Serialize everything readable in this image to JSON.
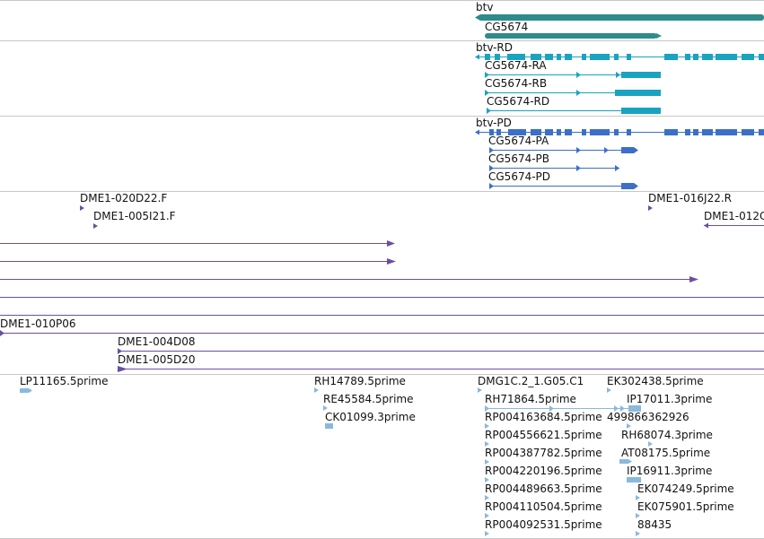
{
  "colors": {
    "gene": "#2e8b8b",
    "transcript": "#1aa3c0",
    "protein": "#3c6fc8",
    "clone": "#6a4fa3",
    "est": "#89b9de",
    "separator": "#c8c8c8"
  },
  "tracks": [
    {
      "id": "genes",
      "features": [
        {
          "label": "btv"
        },
        {
          "label": "CG5674"
        }
      ]
    },
    {
      "id": "transcripts",
      "features": [
        {
          "label": "btv-RD"
        },
        {
          "label": "CG5674-RA"
        },
        {
          "label": "CG5674-RB"
        },
        {
          "label": "CG5674-RD"
        }
      ]
    },
    {
      "id": "proteins",
      "features": [
        {
          "label": "btv-PD"
        },
        {
          "label": "CG5674-PA"
        },
        {
          "label": "CG5674-PB"
        },
        {
          "label": "CG5674-PD"
        }
      ]
    },
    {
      "id": "clones",
      "features": [
        {
          "label": "DME1-020D22.F"
        },
        {
          "label": "DME1-005I21.F"
        },
        {
          "label": "DME1-016J22.R"
        },
        {
          "label": "DME1-012C"
        },
        {
          "label": "DME1-010P06"
        },
        {
          "label": "DME1-004D08"
        },
        {
          "label": "DME1-005D20"
        }
      ]
    },
    {
      "id": "ests",
      "features": [
        {
          "label": "LP11165.5prime"
        },
        {
          "label": "RH14789.5prime"
        },
        {
          "label": "RE45584.5prime"
        },
        {
          "label": "CK01099.3prime"
        },
        {
          "label": "DMG1C.2_1.G05.C1"
        },
        {
          "label": "RH71864.5prime"
        },
        {
          "label": "RP004163684.5prime"
        },
        {
          "label": "RP004556621.5prime"
        },
        {
          "label": "RP004387782.5prime"
        },
        {
          "label": "RP004220196.5prime"
        },
        {
          "label": "RP004489663.5prime"
        },
        {
          "label": "RP004110504.5prime"
        },
        {
          "label": "RP004092531.5prime"
        },
        {
          "label": "EK302438.5prime"
        },
        {
          "label": "IP17011.3prime"
        },
        {
          "label": "499866362926"
        },
        {
          "label": "RH68074.3prime"
        },
        {
          "label": "AT08175.5prime"
        },
        {
          "label": "IP16911.3prime"
        },
        {
          "label": "EK074249.5prime"
        },
        {
          "label": "EK075901.5prime"
        },
        {
          "label": "88435"
        }
      ]
    }
  ]
}
